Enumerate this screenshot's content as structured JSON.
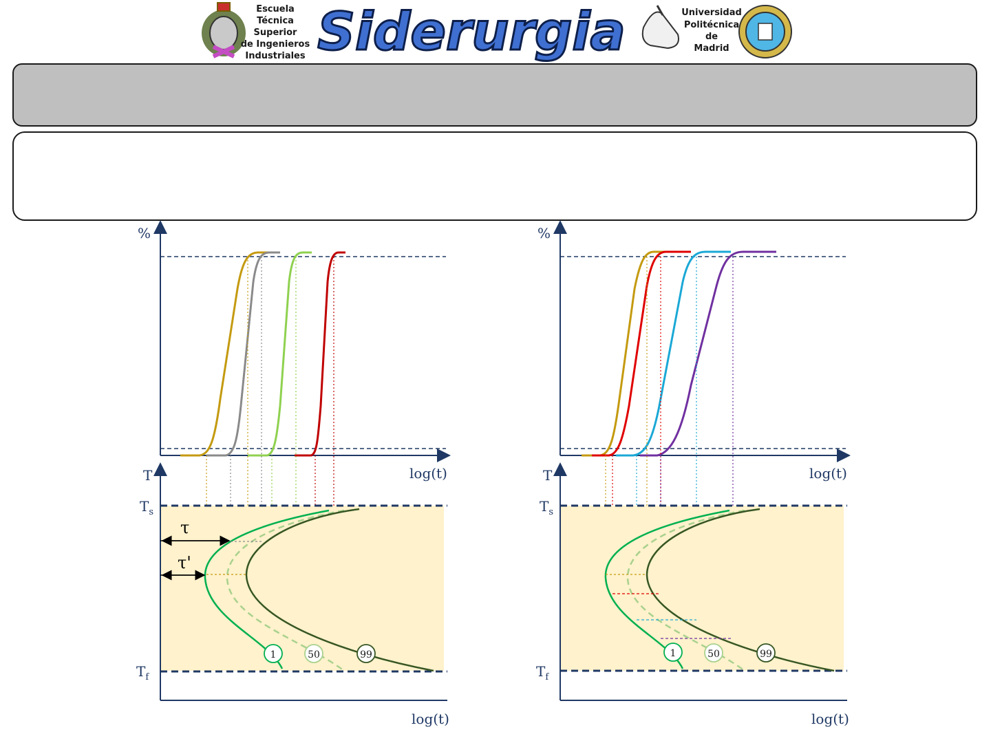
{
  "header": {
    "school_lines": [
      "Escuela",
      "Técnica",
      "Superior",
      "de Ingenieros",
      "Industriales"
    ],
    "brand": "Siderurgia",
    "university_lines": [
      "Universidad",
      "Politécnica",
      "de",
      "Madrid"
    ],
    "icons": [
      "school-crest-icon",
      "hand-pointer-icon",
      "university-seal-icon"
    ]
  },
  "title_box": {
    "text": ""
  },
  "subtitle_box": {
    "text": ""
  },
  "diagrams": [
    {
      "top_axis": {
        "y_label": "%",
        "x_label": "log(t)"
      },
      "bottom_axis": {
        "y_label": "T",
        "x_label": "log(t)",
        "ts_label": "T",
        "ts_sub": "s",
        "tf_label": "T",
        "tf_sub": "f"
      },
      "curve_tags": [
        "1",
        "50",
        "99"
      ],
      "interval_labels": [
        "τ",
        "τ'"
      ],
      "series_colors": [
        "#c49a10",
        "#8a8a8a",
        "#8fd14f",
        "#c00000"
      ]
    },
    {
      "top_axis": {
        "y_label": "%",
        "x_label": "log(t)"
      },
      "bottom_axis": {
        "y_label": "T",
        "x_label": "log(t)",
        "ts_label": "T",
        "ts_sub": "s",
        "tf_label": "T",
        "tf_sub": "f"
      },
      "curve_tags": [
        "1",
        "50",
        "99"
      ],
      "series_colors": [
        "#c49a10",
        "#e00000",
        "#1aa8d6",
        "#7030a0"
      ]
    }
  ],
  "colors": {
    "axis": "#1f3864",
    "region_fill": "#fff2cc",
    "curve_start": "#00b050",
    "curve_mid": "#a9d18e",
    "curve_end": "#375623",
    "title_fill": "#bfbfbf"
  }
}
